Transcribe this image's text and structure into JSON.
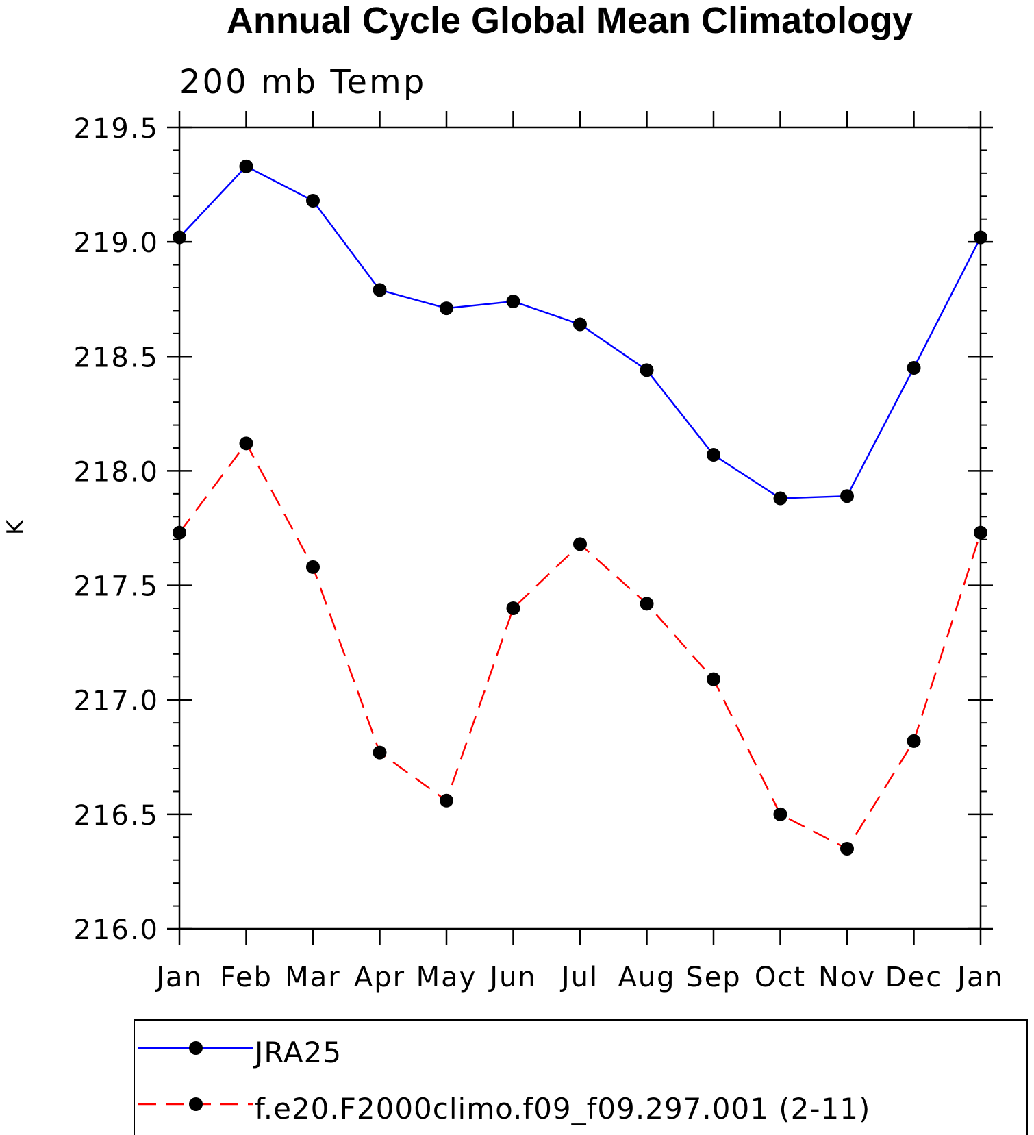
{
  "chart_data": {
    "type": "line",
    "title": "Annual Cycle Global Mean Climatology",
    "subtitle": "200 mb Temp",
    "xlabel": "",
    "ylabel": "K",
    "categories": [
      "Jan",
      "Feb",
      "Mar",
      "Apr",
      "May",
      "Jun",
      "Jul",
      "Aug",
      "Sep",
      "Oct",
      "Nov",
      "Dec",
      "Jan"
    ],
    "ylim": [
      216.0,
      219.5
    ],
    "yticks": [
      "216.0",
      "216.5",
      "217.0",
      "217.5",
      "218.0",
      "218.5",
      "219.0",
      "219.5"
    ],
    "grid": false,
    "legend_position": "bottom",
    "series": [
      {
        "name": "JRA25",
        "color": "#0000ff",
        "line_style": "solid",
        "marker": "filled-circle",
        "values": [
          219.02,
          219.33,
          219.18,
          218.79,
          218.71,
          218.74,
          218.64,
          218.44,
          218.07,
          217.88,
          217.89,
          218.45,
          219.02
        ]
      },
      {
        "name": "f.e20.F2000climo.f09_f09.297.001 (2-11)",
        "color": "#ff0000",
        "line_style": "dashed",
        "marker": "filled-circle",
        "values": [
          217.73,
          218.12,
          217.58,
          216.77,
          216.56,
          217.4,
          217.68,
          217.42,
          217.09,
          216.5,
          216.35,
          216.82,
          217.73
        ]
      }
    ]
  }
}
